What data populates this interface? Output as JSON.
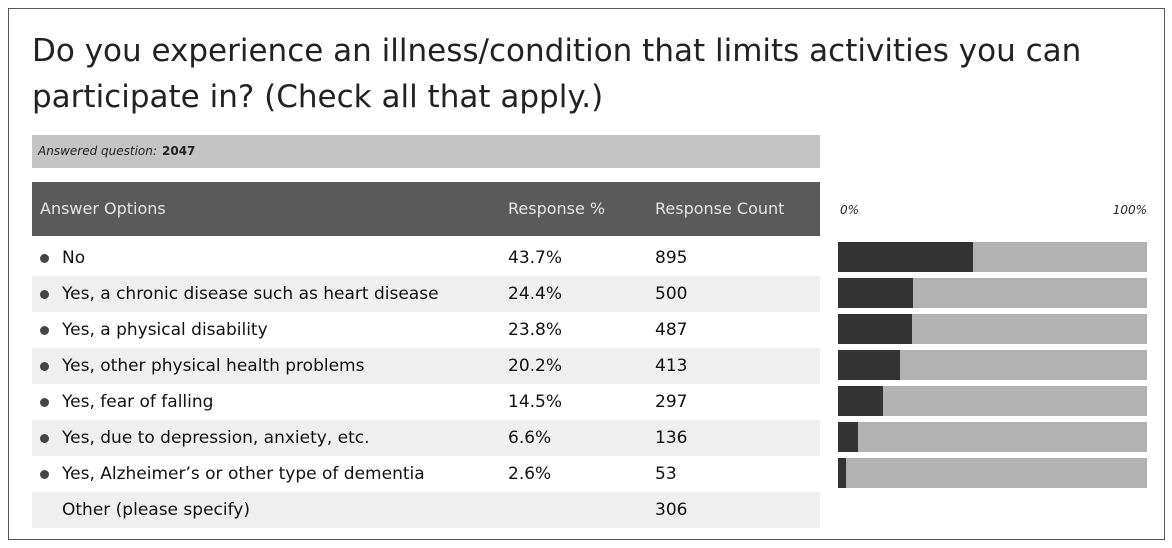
{
  "title": "Do you experience an illness/condition that limits activities you can participate in? (Check all that apply.)",
  "answered": {
    "label": "Answered question:",
    "value": 2047
  },
  "table": {
    "headers": [
      "Answer Options",
      "Response %",
      "Response Count"
    ],
    "scale": {
      "min": {
        "value": 0,
        "label": "0%"
      },
      "max": {
        "value": 100,
        "label": "100%"
      }
    },
    "rows": [
      {
        "option": "No",
        "percent": 43.7,
        "percent_label": "43.7%",
        "count": 895
      },
      {
        "option": "Yes, a chronic disease such as heart disease",
        "percent": 24.4,
        "percent_label": "24.4%",
        "count": 500
      },
      {
        "option": "Yes, a physical disability",
        "percent": 23.8,
        "percent_label": "23.8%",
        "count": 487
      },
      {
        "option": "Yes, other physical health problems",
        "percent": 20.2,
        "percent_label": "20.2%",
        "count": 413
      },
      {
        "option": "Yes, fear of falling",
        "percent": 14.5,
        "percent_label": "14.5%",
        "count": 297
      },
      {
        "option": "Yes, due to depression, anxiety, etc.",
        "percent": 6.6,
        "percent_label": "6.6%",
        "count": 136
      },
      {
        "option": "Yes, Alzheimer’s or other type of dementia",
        "percent": 2.6,
        "percent_label": "2.6%",
        "count": 53
      }
    ],
    "other": {
      "option": "Other (please specify)",
      "count": 306
    }
  }
}
